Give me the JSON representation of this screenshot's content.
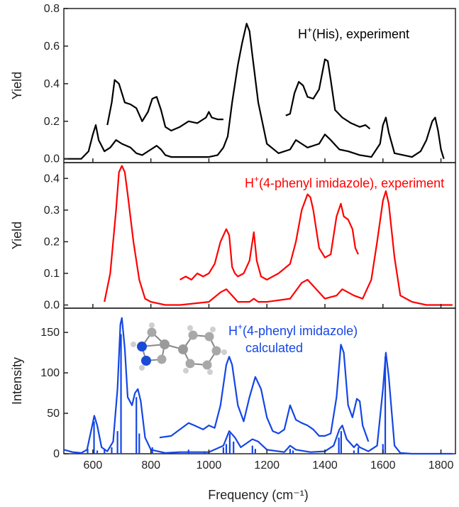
{
  "chart_data": {
    "type": "line",
    "xlabel": "Frequency (cm⁻¹)",
    "xlim": [
      500,
      1850
    ],
    "x_ticks": [
      "600",
      "800",
      "1000",
      "1200",
      "1400",
      "1600",
      "1800"
    ],
    "panels": [
      {
        "ylabel": "Yield",
        "ylim": [
          -0.02,
          0.8
        ],
        "y_ticks": [
          "0.0",
          "0.2",
          "0.4",
          "0.6",
          "0.8"
        ],
        "annotation_lines": [
          "H",
          "+",
          "(His), experiment"
        ],
        "color": "#000000",
        "series": [
          {
            "x": [
              500,
              560,
              585,
              600,
              610,
              620,
              640,
              660,
              680,
              700,
              730,
              750,
              770,
              800,
              820,
              835,
              850,
              870,
              900,
              950,
              1000,
              1030,
              1050,
              1065,
              1080,
              1100,
              1115,
              1130,
              1140,
              1150,
              1170,
              1200,
              1240,
              1280,
              1300,
              1320,
              1340,
              1380,
              1400,
              1420,
              1450,
              1480,
              1520,
              1560,
              1590,
              1600,
              1610,
              1620,
              1640,
              1700,
              1730,
              1750,
              1770,
              1780,
              1790,
              1800,
              1810
            ],
            "y": [
              0,
              0,
              0.04,
              0.13,
              0.18,
              0.1,
              0.04,
              0.06,
              0.1,
              0.08,
              0.06,
              0.03,
              0.02,
              0.05,
              0.07,
              0.05,
              0.02,
              0.01,
              0.01,
              0.01,
              0.01,
              0.02,
              0.06,
              0.12,
              0.3,
              0.5,
              0.62,
              0.72,
              0.68,
              0.55,
              0.3,
              0.08,
              0.03,
              0.05,
              0.1,
              0.08,
              0.06,
              0.08,
              0.13,
              0.1,
              0.05,
              0.04,
              0.02,
              0.01,
              0.08,
              0.18,
              0.22,
              0.14,
              0.03,
              0.01,
              0.04,
              0.1,
              0.2,
              0.22,
              0.15,
              0.05,
              0
            ]
          },
          {
            "x": [
              650,
              665,
              675,
              690,
              710,
              730,
              750,
              770,
              790,
              805,
              820,
              835,
              850,
              870,
              900,
              930,
              960,
              990,
              1000,
              1010,
              1030,
              1050
            ],
            "y": [
              0.18,
              0.3,
              0.42,
              0.4,
              0.3,
              0.29,
              0.27,
              0.2,
              0.25,
              0.32,
              0.33,
              0.26,
              0.17,
              0.15,
              0.17,
              0.2,
              0.19,
              0.22,
              0.25,
              0.22,
              0.21,
              0.21
            ]
          },
          {
            "x": [
              1265,
              1280,
              1295,
              1310,
              1325,
              1340,
              1360,
              1380,
              1400,
              1410,
              1420,
              1435,
              1460,
              1490,
              1520,
              1540,
              1555
            ],
            "y": [
              0.23,
              0.24,
              0.35,
              0.41,
              0.39,
              0.33,
              0.32,
              0.37,
              0.53,
              0.52,
              0.42,
              0.26,
              0.22,
              0.19,
              0.17,
              0.18,
              0.16
            ]
          }
        ]
      },
      {
        "ylabel": "Yield",
        "ylim": [
          -0.01,
          0.45
        ],
        "y_ticks": [
          "0.0",
          "0.1",
          "0.2",
          "0.3",
          "0.4"
        ],
        "annotation_lines": [
          "H",
          "+",
          "(4-phenyl imidazole), experiment"
        ],
        "color": "#ff0000",
        "series": [
          {
            "x": [
              640,
              660,
              680,
              690,
              700,
              710,
              720,
              740,
              760,
              780,
              800,
              850,
              900,
              1000,
              1040,
              1060,
              1080,
              1100,
              1140,
              1155,
              1170,
              1200,
              1280,
              1320,
              1340,
              1360,
              1400,
              1440,
              1460,
              1480,
              1500,
              1530,
              1560,
              1580,
              1600,
              1610,
              1620,
              1640,
              1660,
              1700,
              1750,
              1800,
              1840
            ],
            "y": [
              0.01,
              0.1,
              0.3,
              0.42,
              0.44,
              0.42,
              0.35,
              0.2,
              0.08,
              0.02,
              0.01,
              0,
              0,
              0.01,
              0.04,
              0.05,
              0.03,
              0.01,
              0.01,
              0.02,
              0.01,
              0.01,
              0.02,
              0.07,
              0.08,
              0.06,
              0.02,
              0.03,
              0.05,
              0.04,
              0.03,
              0.02,
              0.08,
              0.2,
              0.33,
              0.36,
              0.32,
              0.15,
              0.03,
              0.01,
              0,
              0,
              0
            ]
          },
          {
            "x": [
              900,
              920,
              940,
              960,
              980,
              1000,
              1020,
              1040,
              1060,
              1070,
              1080,
              1090,
              1100,
              1120,
              1140,
              1155,
              1165,
              1180,
              1200,
              1240,
              1280,
              1300,
              1320,
              1340,
              1350,
              1360,
              1380,
              1400,
              1420,
              1440,
              1455,
              1465,
              1480,
              1495,
              1505,
              1515
            ],
            "y": [
              0.08,
              0.09,
              0.08,
              0.1,
              0.09,
              0.1,
              0.13,
              0.2,
              0.24,
              0.22,
              0.12,
              0.1,
              0.09,
              0.1,
              0.14,
              0.23,
              0.14,
              0.09,
              0.08,
              0.1,
              0.13,
              0.2,
              0.3,
              0.35,
              0.34,
              0.3,
              0.18,
              0.15,
              0.16,
              0.28,
              0.32,
              0.28,
              0.27,
              0.24,
              0.18,
              0.16
            ]
          }
        ]
      },
      {
        "ylabel": "Intensity",
        "ylim": [
          0,
          180
        ],
        "y_ticks": [
          "0",
          "50",
          "100",
          "150"
        ],
        "annotation_lines": [
          "H",
          "+",
          "(4-phenyl imidazole)",
          "calculated"
        ],
        "color": "#1446e6",
        "series": [
          {
            "x": [
              500,
              530,
              560,
              580,
              595,
              605,
              615,
              630,
              650,
              670,
              685,
              695,
              700,
              710,
              720,
              735,
              745,
              755,
              765,
              780,
              800,
              850,
              900,
              1000,
              1050,
              1070,
              1090,
              1110,
              1150,
              1170,
              1200,
              1260,
              1280,
              1300,
              1350,
              1400,
              1430,
              1450,
              1460,
              1475,
              1500,
              1510,
              1520,
              1550,
              1580,
              1600,
              1610,
              1620,
              1640,
              1660,
              1700,
              1800,
              1840
            ],
            "y": [
              5,
              2,
              1,
              5,
              30,
              47,
              35,
              8,
              3,
              15,
              80,
              160,
              168,
              130,
              70,
              60,
              75,
              80,
              65,
              20,
              5,
              1,
              2,
              2,
              10,
              28,
              20,
              8,
              18,
              15,
              5,
              2,
              10,
              5,
              2,
              3,
              10,
              30,
              35,
              18,
              8,
              12,
              8,
              3,
              10,
              80,
              125,
              95,
              10,
              1,
              0,
              0,
              0
            ]
          },
          {
            "x": [
              830,
              870,
              900,
              930,
              950,
              980,
              1000,
              1020,
              1040,
              1060,
              1070,
              1080,
              1100,
              1120,
              1140,
              1160,
              1180,
              1200,
              1220,
              1240,
              1260,
              1280,
              1300,
              1320,
              1340,
              1360,
              1380,
              1400,
              1420,
              1440,
              1455,
              1465,
              1480,
              1495,
              1510,
              1520,
              1530,
              1550
            ],
            "y": [
              20,
              22,
              30,
              38,
              35,
              30,
              35,
              32,
              60,
              110,
              120,
              110,
              60,
              40,
              70,
              95,
              80,
              45,
              28,
              25,
              30,
              60,
              42,
              38,
              35,
              30,
              22,
              22,
              25,
              70,
              135,
              125,
              60,
              45,
              68,
              65,
              35,
              15
            ]
          }
        ],
        "sticks": [
          {
            "x": 582,
            "h": 6
          },
          {
            "x": 604,
            "h": 40
          },
          {
            "x": 615,
            "h": 4
          },
          {
            "x": 640,
            "h": 5
          },
          {
            "x": 665,
            "h": 8
          },
          {
            "x": 685,
            "h": 28
          },
          {
            "x": 697,
            "h": 148
          },
          {
            "x": 750,
            "h": 70
          },
          {
            "x": 760,
            "h": 25
          },
          {
            "x": 805,
            "h": 8
          },
          {
            "x": 930,
            "h": 5
          },
          {
            "x": 985,
            "h": 3
          },
          {
            "x": 1050,
            "h": 8
          },
          {
            "x": 1060,
            "h": 12
          },
          {
            "x": 1072,
            "h": 25
          },
          {
            "x": 1085,
            "h": 15
          },
          {
            "x": 1150,
            "h": 10
          },
          {
            "x": 1160,
            "h": 6
          },
          {
            "x": 1280,
            "h": 6
          },
          {
            "x": 1290,
            "h": 4
          },
          {
            "x": 1448,
            "h": 20
          },
          {
            "x": 1456,
            "h": 28
          },
          {
            "x": 1500,
            "h": 4
          },
          {
            "x": 1515,
            "h": 8
          },
          {
            "x": 1600,
            "h": 12
          },
          {
            "x": 1608,
            "h": 120
          }
        ]
      }
    ]
  }
}
